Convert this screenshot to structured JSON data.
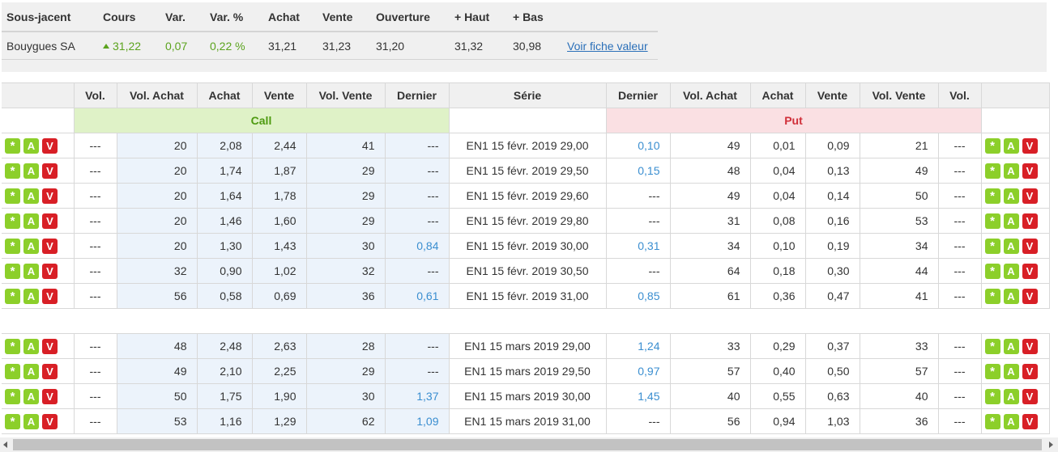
{
  "underlying": {
    "headers": [
      "Sous-jacent",
      "Cours",
      "Var.",
      "Var. %",
      "Achat",
      "Vente",
      "Ouverture",
      "+ Haut",
      "+ Bas"
    ],
    "name": "Bouygues SA",
    "cours": "31,22",
    "var": "0,07",
    "var_pct": "0,22 %",
    "achat": "31,21",
    "vente": "31,23",
    "ouverture": "31,20",
    "haut": "31,32",
    "bas": "30,98",
    "link": "Voir fiche valeur"
  },
  "grid": {
    "headers": [
      "",
      "Vol.",
      "Vol. Achat",
      "Achat",
      "Vente",
      "Vol. Vente",
      "Dernier",
      "Série",
      "Dernier",
      "Vol. Achat",
      "Achat",
      "Vente",
      "Vol. Vente",
      "Vol.",
      ""
    ],
    "call_label": "Call",
    "put_label": "Put",
    "buttons": [
      "*",
      "A",
      "V"
    ],
    "groups": [
      [
        {
          "c_vol": "---",
          "c_vol_achat": "20",
          "c_achat": "2,08",
          "c_vente": "2,44",
          "c_vol_vente": "41",
          "c_dernier": "---",
          "serie": "EN1 15 févr. 2019 29,00",
          "p_dernier": "0,10",
          "p_vol_achat": "49",
          "p_achat": "0,01",
          "p_vente": "0,09",
          "p_vol_vente": "21",
          "p_vol": "---"
        },
        {
          "c_vol": "---",
          "c_vol_achat": "20",
          "c_achat": "1,74",
          "c_vente": "1,87",
          "c_vol_vente": "29",
          "c_dernier": "---",
          "serie": "EN1 15 févr. 2019 29,50",
          "p_dernier": "0,15",
          "p_vol_achat": "48",
          "p_achat": "0,04",
          "p_vente": "0,13",
          "p_vol_vente": "49",
          "p_vol": "---"
        },
        {
          "c_vol": "---",
          "c_vol_achat": "20",
          "c_achat": "1,64",
          "c_vente": "1,78",
          "c_vol_vente": "29",
          "c_dernier": "---",
          "serie": "EN1 15 févr. 2019 29,60",
          "p_dernier": "---",
          "p_vol_achat": "49",
          "p_achat": "0,04",
          "p_vente": "0,14",
          "p_vol_vente": "50",
          "p_vol": "---"
        },
        {
          "c_vol": "---",
          "c_vol_achat": "20",
          "c_achat": "1,46",
          "c_vente": "1,60",
          "c_vol_vente": "29",
          "c_dernier": "---",
          "serie": "EN1 15 févr. 2019 29,80",
          "p_dernier": "---",
          "p_vol_achat": "31",
          "p_achat": "0,08",
          "p_vente": "0,16",
          "p_vol_vente": "53",
          "p_vol": "---"
        },
        {
          "c_vol": "---",
          "c_vol_achat": "20",
          "c_achat": "1,30",
          "c_vente": "1,43",
          "c_vol_vente": "30",
          "c_dernier": "0,84",
          "serie": "EN1 15 févr. 2019 30,00",
          "p_dernier": "0,31",
          "p_vol_achat": "34",
          "p_achat": "0,10",
          "p_vente": "0,19",
          "p_vol_vente": "34",
          "p_vol": "---"
        },
        {
          "c_vol": "---",
          "c_vol_achat": "32",
          "c_achat": "0,90",
          "c_vente": "1,02",
          "c_vol_vente": "32",
          "c_dernier": "---",
          "serie": "EN1 15 févr. 2019 30,50",
          "p_dernier": "---",
          "p_vol_achat": "64",
          "p_achat": "0,18",
          "p_vente": "0,30",
          "p_vol_vente": "44",
          "p_vol": "---"
        },
        {
          "c_vol": "---",
          "c_vol_achat": "56",
          "c_achat": "0,58",
          "c_vente": "0,69",
          "c_vol_vente": "36",
          "c_dernier": "0,61",
          "serie": "EN1 15 févr. 2019 31,00",
          "p_dernier": "0,85",
          "p_vol_achat": "61",
          "p_achat": "0,36",
          "p_vente": "0,47",
          "p_vol_vente": "41",
          "p_vol": "---"
        }
      ],
      [
        {
          "c_vol": "---",
          "c_vol_achat": "48",
          "c_achat": "2,48",
          "c_vente": "2,63",
          "c_vol_vente": "28",
          "c_dernier": "---",
          "serie": "EN1 15 mars 2019 29,00",
          "p_dernier": "1,24",
          "p_vol_achat": "33",
          "p_achat": "0,29",
          "p_vente": "0,37",
          "p_vol_vente": "33",
          "p_vol": "---"
        },
        {
          "c_vol": "---",
          "c_vol_achat": "49",
          "c_achat": "2,10",
          "c_vente": "2,25",
          "c_vol_vente": "29",
          "c_dernier": "---",
          "serie": "EN1 15 mars 2019 29,50",
          "p_dernier": "0,97",
          "p_vol_achat": "57",
          "p_achat": "0,40",
          "p_vente": "0,50",
          "p_vol_vente": "57",
          "p_vol": "---"
        },
        {
          "c_vol": "---",
          "c_vol_achat": "50",
          "c_achat": "1,75",
          "c_vente": "1,90",
          "c_vol_vente": "30",
          "c_dernier": "1,37",
          "serie": "EN1 15 mars 2019 30,00",
          "p_dernier": "1,45",
          "p_vol_achat": "40",
          "p_achat": "0,55",
          "p_vente": "0,63",
          "p_vol_vente": "40",
          "p_vol": "---"
        },
        {
          "c_vol": "---",
          "c_vol_achat": "53",
          "c_achat": "1,16",
          "c_vente": "1,29",
          "c_vol_vente": "62",
          "c_dernier": "1,09",
          "serie": "EN1 15 mars 2019 31,00",
          "p_dernier": "---",
          "p_vol_achat": "56",
          "p_achat": "0,94",
          "p_vente": "1,03",
          "p_vol_vente": "36",
          "p_vol": "---"
        }
      ]
    ]
  }
}
